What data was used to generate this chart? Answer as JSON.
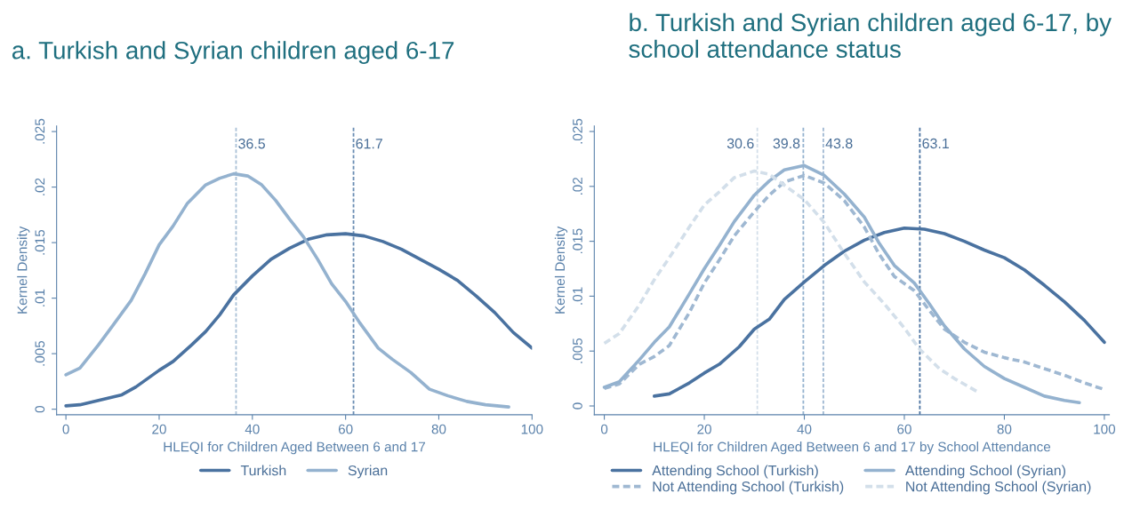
{
  "chart_data": [
    {
      "type": "line",
      "title": "a. Turkish and Syrian children aged 6-17",
      "xlabel": "HLEQI for Children Aged Between 6 and 17",
      "ylabel": "Kernel Density",
      "xlim": [
        -2,
        100
      ],
      "xticks": [
        0,
        20,
        40,
        60,
        80,
        100
      ],
      "ylim": [
        -0.0005,
        0.0255
      ],
      "yticks": [
        {
          "value": 0,
          "label": "0"
        },
        {
          "value": 0.005,
          "label": ".005"
        },
        {
          "value": 0.01,
          "label": ".01"
        },
        {
          "value": 0.015,
          "label": ".015"
        },
        {
          "value": 0.02,
          "label": ".02"
        },
        {
          "value": 0.025,
          "label": ".025"
        }
      ],
      "grid": false,
      "legend": "bottom",
      "marker": "none",
      "series": [
        {
          "name": "Turkish",
          "color": "#4a72a0",
          "line_style": "solid",
          "x": [
            0,
            3,
            7,
            12,
            15,
            20,
            23,
            27,
            30,
            33,
            36,
            40,
            44,
            48,
            52,
            56,
            60,
            64,
            68,
            72,
            76,
            80,
            84,
            88,
            92,
            96,
            100
          ],
          "values": [
            0.0003,
            0.0004,
            0.0008,
            0.0013,
            0.002,
            0.0035,
            0.0043,
            0.0058,
            0.007,
            0.0085,
            0.0103,
            0.012,
            0.0135,
            0.0145,
            0.0153,
            0.0157,
            0.0158,
            0.0156,
            0.0151,
            0.0144,
            0.0135,
            0.0126,
            0.0116,
            0.0102,
            0.0087,
            0.0069,
            0.0055
          ]
        },
        {
          "name": "Syrian",
          "color": "#94b2cf",
          "line_style": "solid",
          "x": [
            0,
            3,
            7,
            10,
            14,
            17,
            20,
            23,
            26,
            30,
            33,
            36,
            39,
            42,
            45,
            48,
            51,
            54,
            57,
            60,
            63,
            67,
            70,
            74,
            78,
            82,
            86,
            90,
            95
          ],
          "values": [
            0.0031,
            0.0037,
            0.0058,
            0.0075,
            0.0098,
            0.0122,
            0.0148,
            0.0165,
            0.0185,
            0.0202,
            0.0208,
            0.0212,
            0.021,
            0.0202,
            0.0188,
            0.0171,
            0.0155,
            0.0135,
            0.0113,
            0.0097,
            0.0078,
            0.0055,
            0.0045,
            0.0033,
            0.0018,
            0.0012,
            0.0007,
            0.0004,
            0.0002
          ]
        }
      ],
      "ref_lines": [
        {
          "axis": "x",
          "value": 36.5,
          "label": "36.5",
          "color": "#a9c0d6",
          "line_style": "dashed"
        },
        {
          "axis": "x",
          "value": 61.7,
          "label": "61.7",
          "color": "#6a8db3",
          "line_style": "dashed"
        }
      ]
    },
    {
      "type": "line",
      "title": "b. Turkish and Syrian children aged 6-17, by school attendance status",
      "xlabel": "HLEQI for Children Aged Between 6 and 17 by School Attendance",
      "ylabel": "Kernel Density",
      "xlim": [
        -2,
        101
      ],
      "xticks": [
        0,
        20,
        40,
        60,
        80,
        100
      ],
      "ylim": [
        -0.0008,
        0.0255
      ],
      "yticks": [
        {
          "value": 0,
          "label": "0"
        },
        {
          "value": 0.005,
          "label": ".005"
        },
        {
          "value": 0.01,
          "label": ".01"
        },
        {
          "value": 0.015,
          "label": ".015"
        },
        {
          "value": 0.02,
          "label": ".02"
        },
        {
          "value": 0.025,
          "label": ".025"
        }
      ],
      "grid": false,
      "legend": "bottom",
      "marker": "none",
      "series": [
        {
          "name": "Attending School (Turkish)",
          "color": "#4a72a0",
          "line_style": "solid",
          "x": [
            10,
            13,
            17,
            20,
            23,
            27,
            30,
            33,
            36,
            40,
            44,
            48,
            52,
            56,
            60,
            64,
            68,
            72,
            76,
            80,
            84,
            88,
            92,
            96,
            100
          ],
          "values": [
            0.0009,
            0.0011,
            0.0021,
            0.003,
            0.0038,
            0.0054,
            0.007,
            0.0079,
            0.0097,
            0.0113,
            0.0128,
            0.0141,
            0.0151,
            0.0158,
            0.0162,
            0.0161,
            0.0157,
            0.015,
            0.0142,
            0.0135,
            0.0124,
            0.011,
            0.0095,
            0.0078,
            0.0058
          ]
        },
        {
          "name": "Not Attending School (Turkish)",
          "color": "#9fb8d2",
          "line_style": "dashed",
          "x": [
            0,
            3,
            7,
            10,
            13,
            17,
            20,
            23,
            26,
            30,
            33,
            36,
            40,
            44,
            48,
            52,
            55,
            58,
            62,
            65,
            68,
            72,
            76,
            80,
            84,
            88,
            92,
            96,
            100
          ],
          "values": [
            0.0016,
            0.002,
            0.0038,
            0.0045,
            0.0055,
            0.0085,
            0.0112,
            0.0133,
            0.0155,
            0.0177,
            0.0192,
            0.0204,
            0.021,
            0.0203,
            0.0187,
            0.0163,
            0.0138,
            0.0118,
            0.0105,
            0.0087,
            0.007,
            0.0058,
            0.0049,
            0.0044,
            0.004,
            0.0034,
            0.0028,
            0.0021,
            0.0015
          ]
        },
        {
          "name": "Attending School (Syrian)",
          "color": "#94b2cf",
          "line_style": "solid",
          "x": [
            0,
            3,
            7,
            10,
            13,
            17,
            20,
            23,
            26,
            30,
            33,
            36,
            40,
            44,
            48,
            52,
            55,
            58,
            62,
            65,
            68,
            72,
            76,
            80,
            84,
            88,
            92,
            95
          ],
          "values": [
            0.0017,
            0.0022,
            0.0042,
            0.0058,
            0.0072,
            0.0102,
            0.0125,
            0.0146,
            0.0168,
            0.0192,
            0.0205,
            0.0215,
            0.0219,
            0.021,
            0.0193,
            0.0172,
            0.0148,
            0.0128,
            0.0112,
            0.0093,
            0.0073,
            0.0052,
            0.0036,
            0.0025,
            0.0017,
            0.0009,
            0.0005,
            0.0003
          ]
        },
        {
          "name": "Not Attending School (Syrian)",
          "color": "#d3dfea",
          "line_style": "dashed",
          "x": [
            0,
            3,
            7,
            10,
            13,
            17,
            20,
            23,
            26,
            30,
            33,
            36,
            40,
            44,
            48,
            52,
            56,
            60,
            63,
            67,
            70,
            75
          ],
          "values": [
            0.0057,
            0.0066,
            0.0092,
            0.0115,
            0.0135,
            0.0163,
            0.0183,
            0.0195,
            0.0208,
            0.0214,
            0.0211,
            0.0201,
            0.0188,
            0.0167,
            0.0139,
            0.0113,
            0.0093,
            0.0071,
            0.0052,
            0.0034,
            0.0025,
            0.0012
          ]
        }
      ],
      "ref_lines": [
        {
          "axis": "x",
          "value": 30.6,
          "label": "30.6",
          "color": "#d3dfea",
          "line_style": "dashed"
        },
        {
          "axis": "x",
          "value": 39.8,
          "label": "39.8",
          "color": "#94b2cf",
          "line_style": "dashed"
        },
        {
          "axis": "x",
          "value": 43.8,
          "label": "43.8",
          "color": "#9fb8d2",
          "line_style": "dashed"
        },
        {
          "axis": "x",
          "value": 63.1,
          "label": "63.1",
          "color": "#4a72a0",
          "line_style": "dashed"
        }
      ]
    }
  ]
}
